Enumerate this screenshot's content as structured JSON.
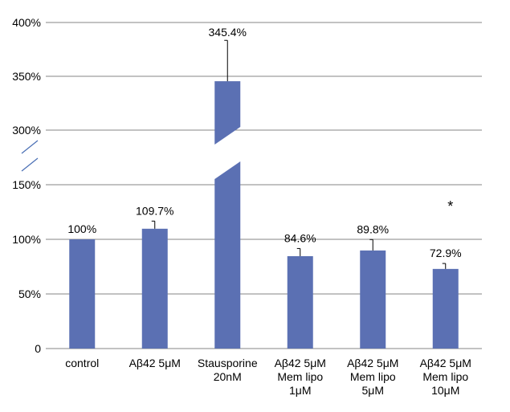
{
  "chart_data": {
    "type": "bar",
    "title": "",
    "xlabel": "",
    "ylabel": "",
    "axis_break": {
      "lower_max": 150,
      "upper_min": 300
    },
    "ylim": [
      0,
      400
    ],
    "grid": true,
    "legend": "none",
    "y_ticks": [
      "0",
      "50%",
      "100%",
      "150%",
      "300%",
      "350%",
      "400%"
    ],
    "categories": [
      [
        "control"
      ],
      [
        "Aβ42 5μM"
      ],
      [
        "Stausporine",
        "20nM"
      ],
      [
        "Aβ42 5μM",
        "Mem lipo",
        "1μM"
      ],
      [
        "Aβ42 5μM",
        "Mem lipo",
        "5μM"
      ],
      [
        "Aβ42 5μM",
        "Mem lipo",
        "10μM"
      ]
    ],
    "values": [
      100,
      109.7,
      345.4,
      84.6,
      89.8,
      72.9
    ],
    "error": [
      0,
      7,
      38,
      7,
      10,
      5
    ],
    "data_labels": [
      "100%",
      "109.7%",
      "345.4%",
      "84.6%",
      "89.8%",
      "72.9%"
    ],
    "significance": {
      "index": 5,
      "mark": "*"
    },
    "bar_color": "#5b70b3",
    "grid_color": "#868686"
  }
}
